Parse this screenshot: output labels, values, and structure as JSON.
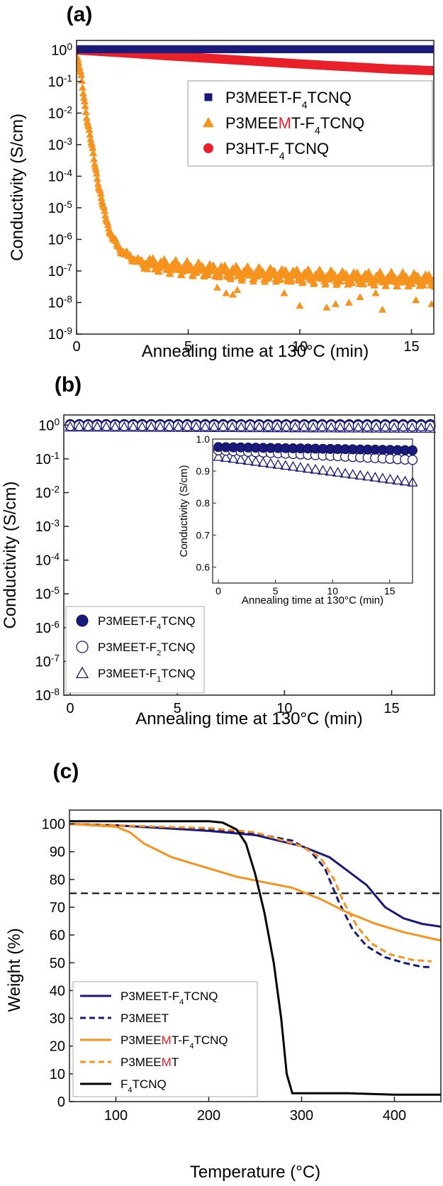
{
  "figure": {
    "panel_letters": [
      "(a)",
      "(b)",
      "(c)"
    ]
  },
  "chart_data": [
    {
      "panel": "(a)",
      "type": "scatter",
      "xlabel": "Annealing time at 130°C (min)",
      "ylabel": "Conductivity (S/cm)",
      "xlim": [
        0,
        16
      ],
      "ylim": [
        1e-09,
        2
      ],
      "yscale": "log",
      "x_ticks": [
        0,
        5,
        10,
        15
      ],
      "y_tick_exponents": [
        0,
        -1,
        -2,
        -3,
        -4,
        -5,
        -6,
        -7,
        -8,
        -9
      ],
      "legend_position": "top-right",
      "series": [
        {
          "name": "P3MEET-F4TCNQ",
          "name_parts": [
            [
              "P3MEET-F",
              ""
            ],
            [
              "4",
              "sub"
            ],
            [
              "TCNQ",
              ""
            ]
          ],
          "marker": "square",
          "color": "#1a1a7a",
          "points": [
            [
              0,
              1.05
            ],
            [
              2,
              1.05
            ],
            [
              4,
              1.05
            ],
            [
              6,
              1.05
            ],
            [
              8,
              1.05
            ],
            [
              10,
              1.05
            ],
            [
              12,
              1.05
            ],
            [
              14,
              1.05
            ],
            [
              16,
              1.05
            ]
          ]
        },
        {
          "name": "P3MEEMT-F4TCNQ",
          "name_parts": [
            [
              "P3MEE",
              ""
            ],
            [
              "M",
              "red"
            ],
            [
              "T-F",
              ""
            ],
            [
              "4",
              "sub"
            ],
            [
              "TCNQ",
              ""
            ]
          ],
          "marker": "triangle",
          "color": "#f5931e",
          "points": [
            [
              0,
              0.6
            ],
            [
              0.1,
              0.35
            ],
            [
              0.2,
              0.15
            ],
            [
              0.3,
              0.05
            ],
            [
              0.4,
              0.015
            ],
            [
              0.5,
              0.005
            ],
            [
              0.6,
              0.002
            ],
            [
              0.8,
              0.0003
            ],
            [
              1.0,
              5e-05
            ],
            [
              1.2,
              1e-05
            ],
            [
              1.4,
              3e-06
            ],
            [
              1.6,
              1.2e-06
            ],
            [
              1.8,
              7e-07
            ],
            [
              2.0,
              4.5e-07
            ],
            [
              2.5,
              2.5e-07
            ],
            [
              3,
              1.8e-07
            ],
            [
              4,
              1.4e-07
            ],
            [
              5,
              1.2e-07
            ],
            [
              6,
              1.05e-07
            ],
            [
              7,
              9e-08
            ],
            [
              8,
              8e-08
            ],
            [
              9,
              7.5e-08
            ],
            [
              10,
              7e-08
            ],
            [
              11,
              6.5e-08
            ],
            [
              12,
              6e-08
            ],
            [
              13,
              5.8e-08
            ],
            [
              14,
              5.5e-08
            ],
            [
              15,
              5.3e-08
            ],
            [
              16,
              5e-08
            ]
          ],
          "outliers": [
            [
              6.3,
              3e-08
            ],
            [
              6.7,
              2e-08
            ],
            [
              7.0,
              1.8e-08
            ],
            [
              7.2,
              2.5e-08
            ],
            [
              9.3,
              2e-08
            ],
            [
              10.0,
              8e-09
            ],
            [
              11.2,
              7e-09
            ],
            [
              11.6,
              9e-09
            ],
            [
              12.2,
              1e-08
            ],
            [
              12.7,
              1.5e-08
            ],
            [
              13.4,
              2e-08
            ],
            [
              13.7,
              6e-09
            ],
            [
              15.2,
              1.2e-08
            ],
            [
              15.9,
              9e-09
            ]
          ]
        },
        {
          "name": "P3HT-F4TCNQ",
          "name_parts": [
            [
              "P3HT-F",
              ""
            ],
            [
              "4",
              "sub"
            ],
            [
              "TCNQ",
              ""
            ]
          ],
          "marker": "circle",
          "color": "#e8202a",
          "points": [
            [
              0,
              1.0
            ],
            [
              2,
              0.82
            ],
            [
              4,
              0.66
            ],
            [
              6,
              0.54
            ],
            [
              8,
              0.44
            ],
            [
              10,
              0.36
            ],
            [
              12,
              0.3
            ],
            [
              14,
              0.25
            ],
            [
              16,
              0.22
            ]
          ]
        }
      ]
    },
    {
      "panel": "(b)",
      "type": "scatter",
      "xlabel": "Annealing time at 130°C (min)",
      "ylabel": "Conductivity (S/cm)",
      "xlim": [
        -0.3,
        17
      ],
      "ylim": [
        1e-08,
        2
      ],
      "yscale": "log",
      "x_ticks": [
        0,
        5,
        10,
        15
      ],
      "y_tick_exponents": [
        0,
        -1,
        -2,
        -3,
        -4,
        -5,
        -6,
        -7,
        -8
      ],
      "legend_position": "bottom-left",
      "series": [
        {
          "name": "P3MEET-F4TCNQ",
          "name_parts": [
            [
              "P3MEET-F",
              ""
            ],
            [
              "4",
              "sub"
            ],
            [
              "TCNQ",
              ""
            ]
          ],
          "marker": "filled-sphere",
          "color": "#1a1a7a",
          "start": 0.975,
          "end": 0.965
        },
        {
          "name": "P3MEET-F2TCNQ",
          "name_parts": [
            [
              "P3MEET-F",
              ""
            ],
            [
              "2",
              "sub"
            ],
            [
              "TCNQ",
              ""
            ]
          ],
          "marker": "open-circle",
          "color": "#1a1a7a",
          "start": 0.965,
          "end": 0.935
        },
        {
          "name": "P3MEET-F1TCNQ",
          "name_parts": [
            [
              "P3MEET-F",
              ""
            ],
            [
              "1",
              "sub"
            ],
            [
              "TCNQ",
              ""
            ]
          ],
          "marker": "open-triangle",
          "color": "#1a1a7a",
          "start": 0.945,
          "end": 0.865
        }
      ],
      "inset": {
        "xlabel": "Annealing time at 130°C (min)",
        "ylabel": "Conductivity (S/cm)",
        "xlim": [
          -0.5,
          17
        ],
        "ylim": [
          0.55,
          1.0
        ],
        "x_ticks": [
          0,
          5,
          10,
          15
        ],
        "y_ticks": [
          0.6,
          0.7,
          0.8,
          0.9,
          1.0
        ],
        "y_tick_labels": [
          "0.6",
          "0.7",
          "0.8",
          "0.9",
          "1.0"
        ],
        "n_points": 27
      }
    },
    {
      "panel": "(c)",
      "type": "line",
      "xlabel": "Temperature (°C)",
      "ylabel": "Weight (%)",
      "xlim": [
        50,
        450
      ],
      "ylim": [
        0,
        105
      ],
      "x_ticks": [
        100,
        200,
        300,
        400
      ],
      "y_ticks": [
        0,
        10,
        20,
        30,
        40,
        50,
        60,
        70,
        80,
        90,
        100
      ],
      "reference_line": 75,
      "legend_position": "bottom-left",
      "series": [
        {
          "name": "P3MEET-F4TCNQ",
          "name_parts": [
            [
              "P3MEET-F",
              ""
            ],
            [
              "4",
              "sub"
            ],
            [
              "TCNQ",
              ""
            ]
          ],
          "color": "#1a1a7a",
          "dash": "solid",
          "points": [
            [
              50,
              100
            ],
            [
              100,
              99.5
            ],
            [
              150,
              98.5
            ],
            [
              200,
              97.5
            ],
            [
              250,
              96
            ],
            [
              300,
              92
            ],
            [
              330,
              88
            ],
            [
              350,
              83
            ],
            [
              370,
              78
            ],
            [
              390,
              70
            ],
            [
              410,
              66
            ],
            [
              430,
              64
            ],
            [
              450,
              63
            ]
          ]
        },
        {
          "name": "P3MEET",
          "name_parts": [
            [
              "P3MEET",
              ""
            ]
          ],
          "color": "#1a1a7a",
          "dash": "dashed",
          "points": [
            [
              50,
              100
            ],
            [
              100,
              99.5
            ],
            [
              150,
              98.5
            ],
            [
              200,
              98
            ],
            [
              250,
              96.5
            ],
            [
              290,
              94
            ],
            [
              310,
              90
            ],
            [
              325,
              84
            ],
            [
              340,
              72
            ],
            [
              355,
              62
            ],
            [
              370,
              56
            ],
            [
              390,
              52
            ],
            [
              410,
              50
            ],
            [
              430,
              48.5
            ],
            [
              440,
              48.5
            ]
          ]
        },
        {
          "name": "P3MEEMT-F4TCNQ",
          "name_parts": [
            [
              "P3MEE",
              ""
            ],
            [
              "M",
              "red"
            ],
            [
              "T-F",
              ""
            ],
            [
              "4",
              "sub"
            ],
            [
              "TCNQ",
              ""
            ]
          ],
          "color": "#f5931e",
          "dash": "solid",
          "points": [
            [
              50,
              100
            ],
            [
              100,
              99
            ],
            [
              115,
              97
            ],
            [
              130,
              93
            ],
            [
              160,
              88
            ],
            [
              200,
              84
            ],
            [
              230,
              81
            ],
            [
              260,
              79
            ],
            [
              290,
              77
            ],
            [
              320,
              73
            ],
            [
              350,
              68
            ],
            [
              380,
              64
            ],
            [
              410,
              61
            ],
            [
              450,
              58
            ]
          ]
        },
        {
          "name": "P3MEEMT",
          "name_parts": [
            [
              "P3MEE",
              ""
            ],
            [
              "M",
              "red"
            ],
            [
              "T",
              ""
            ]
          ],
          "color": "#f5931e",
          "dash": "dashed",
          "points": [
            [
              50,
              100
            ],
            [
              100,
              99.5
            ],
            [
              150,
              99
            ],
            [
              200,
              98.5
            ],
            [
              250,
              97
            ],
            [
              300,
              92
            ],
            [
              320,
              88
            ],
            [
              335,
              80
            ],
            [
              345,
              72
            ],
            [
              360,
              63
            ],
            [
              375,
              57
            ],
            [
              395,
              53
            ],
            [
              420,
              51
            ],
            [
              440,
              50.5
            ]
          ]
        },
        {
          "name": "F4TCNQ",
          "name_parts": [
            [
              "F",
              ""
            ],
            [
              "4",
              "sub"
            ],
            [
              "TCNQ",
              ""
            ]
          ],
          "color": "#000000",
          "dash": "solid",
          "points": [
            [
              50,
              101
            ],
            [
              100,
              101
            ],
            [
              150,
              101
            ],
            [
              200,
              101
            ],
            [
              215,
              100.5
            ],
            [
              230,
              98
            ],
            [
              240,
              93
            ],
            [
              250,
              82
            ],
            [
              260,
              68
            ],
            [
              270,
              50
            ],
            [
              278,
              30
            ],
            [
              284,
              10
            ],
            [
              290,
              3
            ],
            [
              300,
              3
            ],
            [
              350,
              3
            ],
            [
              400,
              2.5
            ],
            [
              450,
              2.5
            ]
          ]
        }
      ]
    }
  ]
}
